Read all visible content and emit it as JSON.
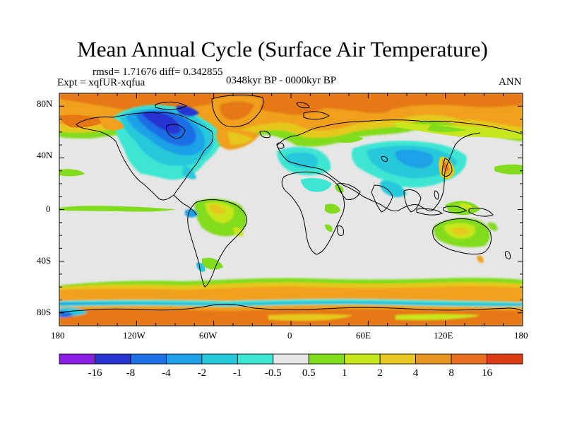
{
  "title": "Mean Annual Cycle (Surface Air Temperature)",
  "stats": "rmsd= 1.71676 diff= 0.342855",
  "expt": "Expt = xqfUR-xqfua",
  "period": "0348kyr BP - 0000kyr BP",
  "season": "ANN",
  "lat_ticks": [
    "80N",
    "40N",
    "0",
    "40S",
    "80S"
  ],
  "lon_ticks": [
    "180",
    "120W",
    "60W",
    "0",
    "60E",
    "120E",
    "180"
  ],
  "colorbar": {
    "labels": [
      "-16",
      "-8",
      "-4",
      "-2",
      "-1",
      "-0.5",
      "0.5",
      "1",
      "2",
      "4",
      "8",
      "16"
    ],
    "colors": [
      "#8c1ee6",
      "#2834d2",
      "#1e6ee6",
      "#1ea0e6",
      "#28c8dc",
      "#3ce6d2",
      "#e6e6e6",
      "#82dc1e",
      "#c8e61e",
      "#e6c81e",
      "#e6961e",
      "#e66e1e",
      "#dc3c14"
    ]
  },
  "map_colors": {
    "ocean_neutral": "#e6e6e6",
    "warm_high": "#e67814",
    "warm_mid": "#f0a01e",
    "warm_low": "#e6c81e",
    "green": "#82dc1e",
    "lime": "#c8e61e",
    "cyan": "#3ce6d2",
    "light_blue": "#28c8dc",
    "blue": "#1ea0e6",
    "deep_blue": "#1e6ee6",
    "navy": "#2834d2"
  }
}
